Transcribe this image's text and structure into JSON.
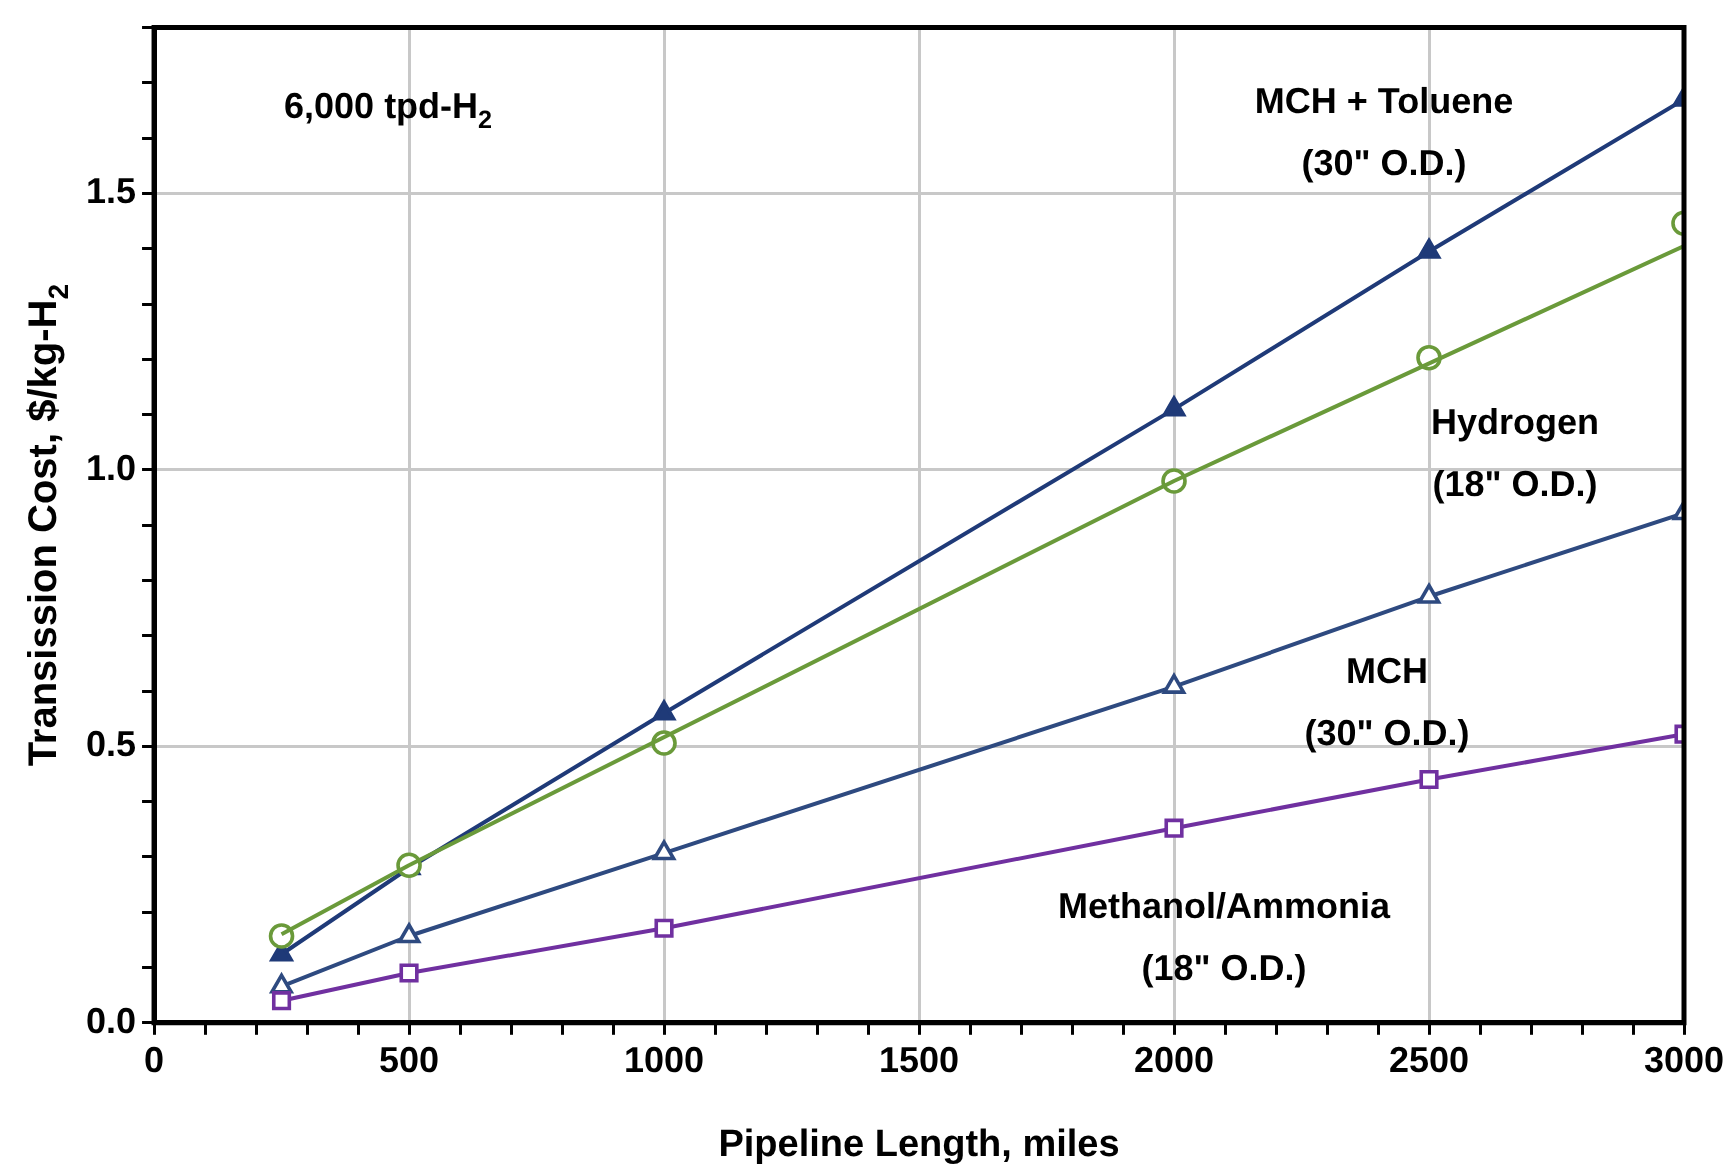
{
  "chart_data": {
    "type": "line",
    "xlabel": "Pipeline Length, miles",
    "ylabel": "Transission Cost, $/kg-H$_{2}$",
    "annotations": [
      "6,000 tpd-H$_{2}$"
    ],
    "xlim": [
      0,
      3000
    ],
    "ylim": [
      0,
      1.8
    ],
    "xticks": [
      0,
      {
        "value": 100,
        "label": null
      },
      {
        "value": 200,
        "label": null
      },
      {
        "value": 300,
        "label": null
      },
      {
        "value": 400,
        "label": null
      },
      500,
      {
        "value": 600,
        "label": null
      },
      {
        "value": 700,
        "label": null
      },
      {
        "value": 800,
        "label": null
      },
      {
        "value": 900,
        "label": null
      },
      1000,
      {
        "value": 1100,
        "label": null
      },
      {
        "value": 1200,
        "label": null
      },
      {
        "value": 1300,
        "label": null
      },
      {
        "value": 1400,
        "label": null
      },
      1500,
      {
        "value": 1600,
        "label": null
      },
      {
        "value": 1700,
        "label": null
      },
      {
        "value": 1800,
        "label": null
      },
      {
        "value": 1900,
        "label": null
      },
      2000,
      {
        "value": 2100,
        "label": null
      },
      {
        "value": 2200,
        "label": null
      },
      {
        "value": 2300,
        "label": null
      },
      {
        "value": 2400,
        "label": null
      },
      2500,
      {
        "value": 2600,
        "label": null
      },
      {
        "value": 2700,
        "label": null
      },
      {
        "value": 2800,
        "label": null
      },
      {
        "value": 2900,
        "label": null
      },
      3000
    ],
    "yticks": [
      {
        "value": 0,
        "label": "0.0"
      },
      {
        "value": 0.1,
        "label": null
      },
      {
        "value": 0.2,
        "label": null
      },
      {
        "value": 0.3,
        "label": null
      },
      {
        "value": 0.4,
        "label": null
      },
      {
        "value": 0.5,
        "label": "0.5"
      },
      {
        "value": 0.6,
        "label": null
      },
      {
        "value": 0.7,
        "label": null
      },
      {
        "value": 0.8,
        "label": null
      },
      {
        "value": 0.9,
        "label": null
      },
      {
        "value": 1.0,
        "label": "1.0"
      },
      {
        "value": 1.1,
        "label": null
      },
      {
        "value": 1.2,
        "label": null
      },
      {
        "value": 1.3,
        "label": null
      },
      {
        "value": 1.4,
        "label": null
      },
      {
        "value": 1.5,
        "label": "1.5"
      },
      {
        "value": 1.6,
        "label": null
      },
      {
        "value": 1.7,
        "label": null
      },
      {
        "value": 1.8,
        "label": null
      }
    ],
    "grid": true,
    "legend": false,
    "line_style": "solid",
    "x": [
      250,
      500,
      1000,
      2000,
      2500,
      3000
    ],
    "series": [
      {
        "name": "MCH + Toluene\n(30\" O.D.)",
        "color": "#1f3a78",
        "marker": "triangle",
        "values": [
          0.124,
          0.28,
          0.56,
          1.11,
          1.395,
          1.67
        ]
      },
      {
        "name": "Hydrogen\n(18\" O.D.)",
        "color": "#6a9a3a",
        "type": "scatter",
        "marker": "circle",
        "values": [
          0.157,
          0.285,
          0.506,
          0.98,
          1.203,
          1.446
        ]
      },
      {
        "color": "#6a9a3a",
        "type": "line",
        "marker": "none",
        "x": [
          250,
          500,
          2000,
          3000
        ],
        "values": [
          0.16,
          0.285,
          0.98,
          1.405
        ]
      },
      {
        "name": "MCH\n(30\" O.D.)",
        "color": "#2e4a80",
        "marker": "triangle",
        "values": [
          0.066,
          0.157,
          0.307,
          0.608,
          0.771,
          0.922
        ]
      },
      {
        "name": "Methanol/Ammonia\n(18\" O.D.)",
        "color": "#7030a0",
        "marker": "square",
        "values": [
          0.04,
          0.09,
          0.171,
          0.352,
          0.44,
          0.522
        ]
      }
    ]
  }
}
